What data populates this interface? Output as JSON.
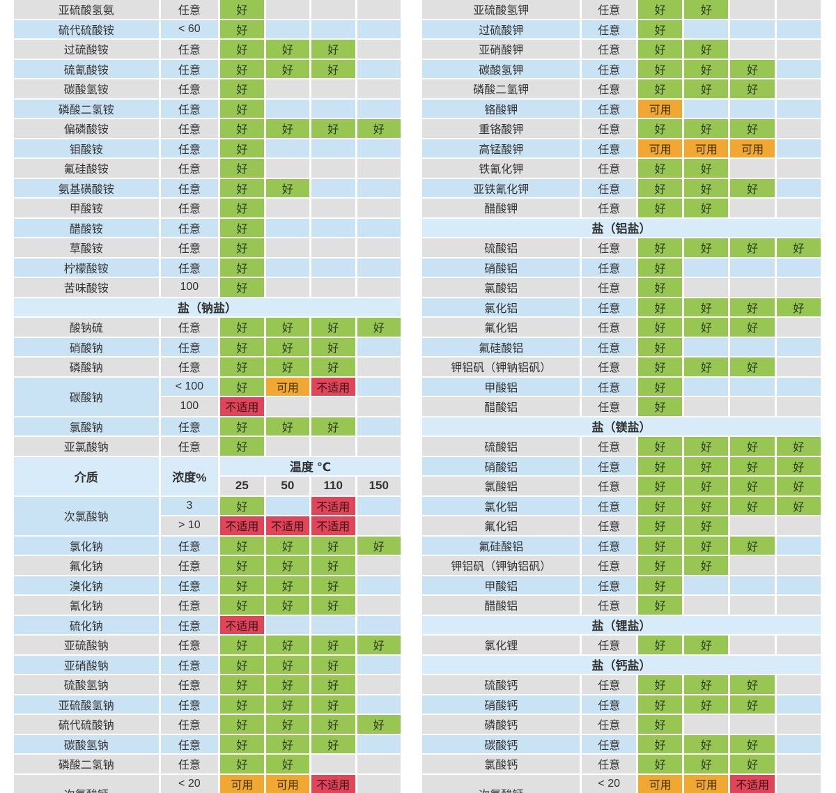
{
  "colors": {
    "good": "#97c653",
    "usable": "#f1a833",
    "unsuitable": "#e0455a",
    "row_gray": "#e0e0e0",
    "row_blue": "#c9e3f4",
    "section_blue": "#d7ebf8",
    "text": "#333333"
  },
  "chart_data": {
    "type": "table",
    "columns": [
      "介质",
      "浓度%",
      "25",
      "50",
      "110",
      "150"
    ],
    "temperature_header": "温度 ℃",
    "concentration_any_label": "任意",
    "ratings_legend": {
      "好": "good",
      "可用": "usable",
      "不适用": "unsuitable"
    },
    "tables": [
      {
        "id": "left",
        "rows": [
          {
            "t": "d",
            "n": "亚硫酸氢氨",
            "c": "任意",
            "v": [
              "好",
              "",
              "",
              ""
            ],
            "bg": "g"
          },
          {
            "t": "d",
            "n": "硫代硫酸铵",
            "c": "< 60",
            "v": [
              "好",
              "",
              "",
              ""
            ],
            "bg": "b"
          },
          {
            "t": "d",
            "n": "过硫酸铵",
            "c": "任意",
            "v": [
              "好",
              "好",
              "好",
              ""
            ],
            "bg": "g"
          },
          {
            "t": "d",
            "n": "硫氰酸铵",
            "c": "任意",
            "v": [
              "好",
              "好",
              "好",
              ""
            ],
            "bg": "b"
          },
          {
            "t": "d",
            "n": "碳酸氢铵",
            "c": "任意",
            "v": [
              "好",
              "",
              "",
              ""
            ],
            "bg": "g"
          },
          {
            "t": "d",
            "n": "磷酸二氢铵",
            "c": "任意",
            "v": [
              "好",
              "",
              "",
              ""
            ],
            "bg": "b"
          },
          {
            "t": "d",
            "n": "偏磷酸铵",
            "c": "任意",
            "v": [
              "好",
              "好",
              "好",
              "好"
            ],
            "bg": "g"
          },
          {
            "t": "d",
            "n": "钼酸铵",
            "c": "任意",
            "v": [
              "好",
              "",
              "",
              ""
            ],
            "bg": "b"
          },
          {
            "t": "d",
            "n": "氟硅酸铵",
            "c": "任意",
            "v": [
              "好",
              "",
              "",
              ""
            ],
            "bg": "g"
          },
          {
            "t": "d",
            "n": "氨基磺酸铵",
            "c": "任意",
            "v": [
              "好",
              "好",
              "",
              ""
            ],
            "bg": "b"
          },
          {
            "t": "d",
            "n": "甲酸铵",
            "c": "任意",
            "v": [
              "好",
              "",
              "",
              ""
            ],
            "bg": "g"
          },
          {
            "t": "d",
            "n": "醋酸铵",
            "c": "任意",
            "v": [
              "好",
              "",
              "",
              ""
            ],
            "bg": "b"
          },
          {
            "t": "d",
            "n": "草酸铵",
            "c": "任意",
            "v": [
              "好",
              "",
              "",
              ""
            ],
            "bg": "g"
          },
          {
            "t": "d",
            "n": "柠檬酸铵",
            "c": "任意",
            "v": [
              "好",
              "",
              "",
              ""
            ],
            "bg": "b"
          },
          {
            "t": "d",
            "n": "苦味酸铵",
            "c": "100",
            "v": [
              "好",
              "",
              "",
              ""
            ],
            "bg": "g"
          },
          {
            "t": "s",
            "n": "盐（钠盐）"
          },
          {
            "t": "d",
            "n": "酸钠硫",
            "c": "任意",
            "v": [
              "好",
              "好",
              "好",
              "好"
            ],
            "bg": "g"
          },
          {
            "t": "d",
            "n": "硝酸钠",
            "c": "任意",
            "v": [
              "好",
              "好",
              "好",
              ""
            ],
            "bg": "b"
          },
          {
            "t": "d",
            "n": "磷酸钠",
            "c": "任意",
            "v": [
              "好",
              "好",
              "好",
              ""
            ],
            "bg": "g"
          },
          {
            "t": "g",
            "n": "碳酸钠",
            "nbg": "b",
            "sub": [
              {
                "c": "< 100",
                "v": [
                  "好",
                  "可用",
                  "不适用",
                  ""
                ],
                "bg": "b"
              },
              {
                "c": "100",
                "v": [
                  "不适用",
                  "",
                  "",
                  ""
                ],
                "bg": "g"
              }
            ]
          },
          {
            "t": "d",
            "n": "氯酸钠",
            "c": "任意",
            "v": [
              "好",
              "好",
              "好",
              ""
            ],
            "bg": "b"
          },
          {
            "t": "d",
            "n": "亚氯酸钠",
            "c": "任意",
            "v": [
              "好",
              "",
              "",
              ""
            ],
            "bg": "g"
          },
          {
            "t": "h"
          },
          {
            "t": "g",
            "n": "次氯酸钠",
            "nbg": "b",
            "sub": [
              {
                "c": "3",
                "v": [
                  "好",
                  "",
                  "不适用",
                  ""
                ],
                "bg": "b"
              },
              {
                "c": "> 10",
                "v": [
                  "不适用",
                  "不适用",
                  "不适用",
                  ""
                ],
                "bg": "g"
              }
            ]
          },
          {
            "t": "d",
            "n": "氯化钠",
            "c": "任意",
            "v": [
              "好",
              "好",
              "好",
              "好"
            ],
            "bg": "b"
          },
          {
            "t": "d",
            "n": "氟化钠",
            "c": "任意",
            "v": [
              "好",
              "好",
              "好",
              ""
            ],
            "bg": "g"
          },
          {
            "t": "d",
            "n": "溴化钠",
            "c": "任意",
            "v": [
              "好",
              "好",
              "好",
              ""
            ],
            "bg": "b"
          },
          {
            "t": "d",
            "n": "氰化钠",
            "c": "任意",
            "v": [
              "好",
              "好",
              "好",
              ""
            ],
            "bg": "g"
          },
          {
            "t": "d",
            "n": "硫化钠",
            "c": "任意",
            "v": [
              "不适用",
              "",
              "",
              ""
            ],
            "bg": "b"
          },
          {
            "t": "d",
            "n": "亚硫酸钠",
            "c": "任意",
            "v": [
              "好",
              "好",
              "好",
              "好"
            ],
            "bg": "g"
          },
          {
            "t": "d",
            "n": "亚硝酸钠",
            "c": "任意",
            "v": [
              "好",
              "好",
              "好",
              ""
            ],
            "bg": "b"
          },
          {
            "t": "d",
            "n": "硫酸氢钠",
            "c": "任意",
            "v": [
              "好",
              "好",
              "好",
              ""
            ],
            "bg": "g"
          },
          {
            "t": "d",
            "n": "亚硫酸氢钠",
            "c": "任意",
            "v": [
              "好",
              "好",
              "好",
              ""
            ],
            "bg": "b"
          },
          {
            "t": "d",
            "n": "硫代硫酸钠",
            "c": "任意",
            "v": [
              "好",
              "好",
              "好",
              "好"
            ],
            "bg": "g"
          },
          {
            "t": "d",
            "n": "碳酸氢钠",
            "c": "任意",
            "v": [
              "好",
              "好",
              "好",
              ""
            ],
            "bg": "b"
          },
          {
            "t": "d",
            "n": "磷酸二氢钠",
            "c": "任意",
            "v": [
              "好",
              "好",
              "",
              ""
            ],
            "bg": "g"
          },
          {
            "t": "g",
            "n": "次氯酸钙",
            "nbg": "g",
            "sub": [
              {
                "c": "< 20",
                "v": [
                  "可用",
                  "可用",
                  "不适用",
                  ""
                ],
                "bg": "g"
              },
              {
                "c": "",
                "v": [
                  "",
                  "",
                  "",
                  ""
                ],
                "bg": "b"
              }
            ]
          }
        ]
      },
      {
        "id": "right",
        "rows": [
          {
            "t": "d",
            "n": "亚硫酸氢钾",
            "c": "任意",
            "v": [
              "好",
              "好",
              "",
              ""
            ],
            "bg": "g"
          },
          {
            "t": "d",
            "n": "过硫酸钾",
            "c": "任意",
            "v": [
              "好",
              "",
              "",
              ""
            ],
            "bg": "b"
          },
          {
            "t": "d",
            "n": "亚硝酸钾",
            "c": "任意",
            "v": [
              "好",
              "好",
              "",
              ""
            ],
            "bg": "g"
          },
          {
            "t": "d",
            "n": "碳酸氢钾",
            "c": "任意",
            "v": [
              "好",
              "好",
              "好",
              ""
            ],
            "bg": "b"
          },
          {
            "t": "d",
            "n": "磷酸二氢钾",
            "c": "任意",
            "v": [
              "好",
              "好",
              "好",
              ""
            ],
            "bg": "g"
          },
          {
            "t": "d",
            "n": "铬酸钾",
            "c": "任意",
            "v": [
              "可用",
              "",
              "",
              ""
            ],
            "bg": "b"
          },
          {
            "t": "d",
            "n": "重铬酸钾",
            "c": "任意",
            "v": [
              "好",
              "好",
              "好",
              ""
            ],
            "bg": "g"
          },
          {
            "t": "d",
            "n": "高锰酸钾",
            "c": "任意",
            "v": [
              "可用",
              "可用",
              "可用",
              ""
            ],
            "bg": "b"
          },
          {
            "t": "d",
            "n": "铁氰化钾",
            "c": "任意",
            "v": [
              "好",
              "好",
              "",
              ""
            ],
            "bg": "g"
          },
          {
            "t": "d",
            "n": "亚铁氰化钾",
            "c": "任意",
            "v": [
              "好",
              "好",
              "好",
              ""
            ],
            "bg": "b"
          },
          {
            "t": "d",
            "n": "醋酸钾",
            "c": "任意",
            "v": [
              "好",
              "好",
              "",
              ""
            ],
            "bg": "g"
          },
          {
            "t": "s",
            "n": "盐（铝盐）"
          },
          {
            "t": "d",
            "n": "硫酸铝",
            "c": "任意",
            "v": [
              "好",
              "好",
              "好",
              "好"
            ],
            "bg": "g"
          },
          {
            "t": "d",
            "n": "硝酸铝",
            "c": "任意",
            "v": [
              "好",
              "",
              "",
              ""
            ],
            "bg": "b"
          },
          {
            "t": "d",
            "n": "氯酸铝",
            "c": "任意",
            "v": [
              "好",
              "",
              "",
              ""
            ],
            "bg": "g"
          },
          {
            "t": "d",
            "n": "氯化铝",
            "c": "任意",
            "v": [
              "好",
              "好",
              "好",
              "好"
            ],
            "bg": "b"
          },
          {
            "t": "d",
            "n": "氟化铝",
            "c": "任意",
            "v": [
              "好",
              "好",
              "好",
              ""
            ],
            "bg": "g"
          },
          {
            "t": "d",
            "n": "氟硅酸铝",
            "c": "任意",
            "v": [
              "好",
              "",
              "",
              ""
            ],
            "bg": "b"
          },
          {
            "t": "d",
            "n": "钾铝矾（钾钠铝矾）",
            "c": "任意",
            "v": [
              "好",
              "好",
              "好",
              ""
            ],
            "bg": "g"
          },
          {
            "t": "d",
            "n": "甲酸铝",
            "c": "任意",
            "v": [
              "好",
              "",
              "",
              ""
            ],
            "bg": "b"
          },
          {
            "t": "d",
            "n": "醋酸铝",
            "c": "任意",
            "v": [
              "好",
              "",
              "",
              ""
            ],
            "bg": "g"
          },
          {
            "t": "s",
            "n": "盐（镁盐）"
          },
          {
            "t": "d",
            "n": "硫酸铝",
            "c": "任意",
            "v": [
              "好",
              "好",
              "好",
              "好"
            ],
            "bg": "g"
          },
          {
            "t": "d",
            "n": "硝酸铝",
            "c": "任意",
            "v": [
              "好",
              "好",
              "好",
              "好"
            ],
            "bg": "b"
          },
          {
            "t": "d",
            "n": "氯酸铝",
            "c": "任意",
            "v": [
              "好",
              "好",
              "好",
              "好"
            ],
            "bg": "g"
          },
          {
            "t": "d",
            "n": "氯化铝",
            "c": "任意",
            "v": [
              "好",
              "好",
              "好",
              "好"
            ],
            "bg": "b"
          },
          {
            "t": "d",
            "n": "氟化铝",
            "c": "任意",
            "v": [
              "好",
              "好",
              "",
              ""
            ],
            "bg": "g"
          },
          {
            "t": "d",
            "n": "氟硅酸铝",
            "c": "任意",
            "v": [
              "好",
              "好",
              "好",
              ""
            ],
            "bg": "b"
          },
          {
            "t": "d",
            "n": "钾铝矾（钾钠铝矾）",
            "c": "任意",
            "v": [
              "好",
              "好",
              "",
              ""
            ],
            "bg": "g"
          },
          {
            "t": "d",
            "n": "甲酸铝",
            "c": "任意",
            "v": [
              "好",
              "",
              "",
              ""
            ],
            "bg": "b"
          },
          {
            "t": "d",
            "n": "醋酸铝",
            "c": "任意",
            "v": [
              "好",
              "",
              "",
              ""
            ],
            "bg": "g"
          },
          {
            "t": "s",
            "n": "盐（锂盐）"
          },
          {
            "t": "d",
            "n": "氯化锂",
            "c": "任意",
            "v": [
              "好",
              "好",
              "",
              ""
            ],
            "bg": "g"
          },
          {
            "t": "s",
            "n": "盐（钙盐）"
          },
          {
            "t": "d",
            "n": "硫酸钙",
            "c": "任意",
            "v": [
              "好",
              "好",
              "好",
              ""
            ],
            "bg": "g"
          },
          {
            "t": "d",
            "n": "硝酸钙",
            "c": "任意",
            "v": [
              "好",
              "好",
              "好",
              ""
            ],
            "bg": "b"
          },
          {
            "t": "d",
            "n": "磷酸钙",
            "c": "任意",
            "v": [
              "好",
              "",
              "",
              ""
            ],
            "bg": "g"
          },
          {
            "t": "d",
            "n": "碳酸钙",
            "c": "任意",
            "v": [
              "好",
              "好",
              "好",
              ""
            ],
            "bg": "b"
          },
          {
            "t": "d",
            "n": "氯酸钙",
            "c": "任意",
            "v": [
              "好",
              "好",
              "好",
              ""
            ],
            "bg": "g"
          },
          {
            "t": "g",
            "n": "次氯酸钙",
            "nbg": "g",
            "sub": [
              {
                "c": "< 20",
                "v": [
                  "可用",
                  "可用",
                  "不适用",
                  ""
                ],
                "bg": "g"
              },
              {
                "c": "",
                "v": [
                  "",
                  "",
                  "",
                  ""
                ],
                "bg": "b"
              }
            ]
          }
        ]
      }
    ]
  }
}
